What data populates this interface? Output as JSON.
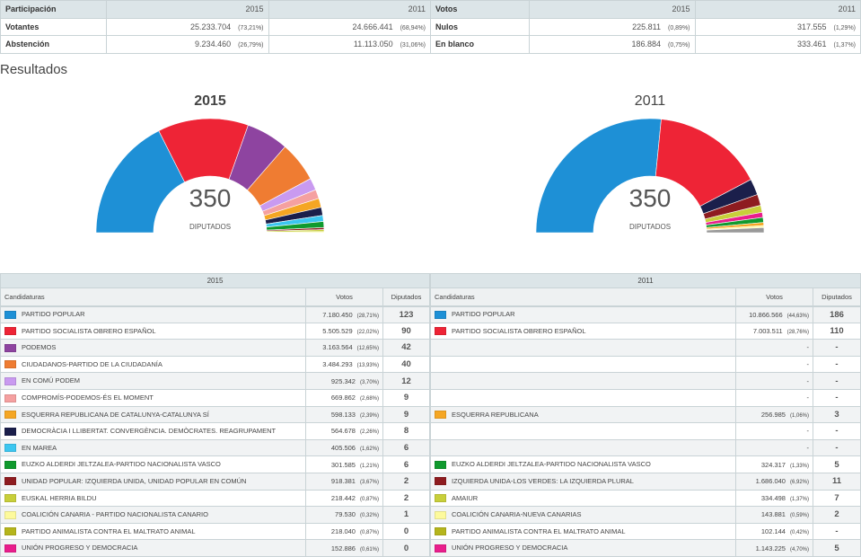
{
  "participacion": {
    "header": [
      "Participación",
      "2015",
      "2011"
    ],
    "rows": [
      {
        "label": "Votantes",
        "v2015": "25.233.704",
        "p2015": "(73,21%)",
        "v2011": "24.666.441",
        "p2011": "(68,94%)"
      },
      {
        "label": "Abstención",
        "v2015": "9.234.460",
        "p2015": "(26,79%)",
        "v2011": "11.113.050",
        "p2011": "(31,06%)"
      }
    ]
  },
  "votos": {
    "header": [
      "Votos",
      "2015",
      "2011"
    ],
    "rows": [
      {
        "label": "Nulos",
        "v2015": "225.811",
        "p2015": "(0,89%)",
        "v2011": "317.555",
        "p2011": "(1,29%)"
      },
      {
        "label": "En blanco",
        "v2015": "186.884",
        "p2015": "(0,75%)",
        "v2011": "333.461",
        "p2011": "(1,37%)"
      }
    ]
  },
  "resultados_title": "Resultados",
  "chart_data": [
    {
      "type": "pie",
      "title": "2015",
      "total": "350",
      "total_label": "DIPUTADOS",
      "segments": [
        {
          "color": "#1e90d6",
          "value": 123
        },
        {
          "color": "#ee2436",
          "value": 90
        },
        {
          "color": "#8e44a0",
          "value": 42
        },
        {
          "color": "#ef7c32",
          "value": 40
        },
        {
          "color": "#c99af0",
          "value": 12
        },
        {
          "color": "#f5a0a0",
          "value": 9
        },
        {
          "color": "#f5a623",
          "value": 9
        },
        {
          "color": "#1b1f4b",
          "value": 8
        },
        {
          "color": "#3cc6f0",
          "value": 6
        },
        {
          "color": "#109a2e",
          "value": 6
        },
        {
          "color": "#8e1c20",
          "value": 2
        },
        {
          "color": "#c8cf3a",
          "value": 2
        },
        {
          "color": "#fdfa9c",
          "value": 1
        }
      ]
    },
    {
      "type": "pie",
      "title": "2011",
      "total": "350",
      "total_label": "DIPUTADOS",
      "segments": [
        {
          "color": "#1e90d6",
          "value": 186
        },
        {
          "color": "#ee2436",
          "value": 110
        },
        {
          "color": "#1b1f4b",
          "value": 16
        },
        {
          "color": "#8e1c20",
          "value": 11
        },
        {
          "color": "#c8cf3a",
          "value": 7
        },
        {
          "color": "#e91e8c",
          "value": 5
        },
        {
          "color": "#109a2e",
          "value": 5
        },
        {
          "color": "#f5a623",
          "value": 3
        },
        {
          "color": "#fdfa9c",
          "value": 2
        },
        {
          "color": "#999999",
          "value": 5
        }
      ]
    }
  ],
  "tabla": {
    "cols": [
      "Candidaturas",
      "Votos",
      "Diputados"
    ],
    "y2015": {
      "year": "2015",
      "rows": [
        {
          "color": "#1e90d6",
          "name": "PARTIDO POPULAR",
          "votes": "7.180.450",
          "pct": "(28,71%)",
          "seats": "123"
        },
        {
          "color": "#ee2436",
          "name": "PARTIDO SOCIALISTA OBRERO ESPAÑOL",
          "votes": "5.505.529",
          "pct": "(22,02%)",
          "seats": "90"
        },
        {
          "color": "#8e44a0",
          "name": "PODEMOS",
          "votes": "3.163.564",
          "pct": "(12,65%)",
          "seats": "42"
        },
        {
          "color": "#ef7c32",
          "name": "CIUDADANOS-PARTIDO DE LA CIUDADANÍA",
          "votes": "3.484.293",
          "pct": "(13,93%)",
          "seats": "40"
        },
        {
          "color": "#c99af0",
          "name": "EN COMÚ PODEM",
          "votes": "925.342",
          "pct": "(3,70%)",
          "seats": "12"
        },
        {
          "color": "#f5a0a0",
          "name": "COMPROMÍS-PODEMOS-ÉS EL MOMENT",
          "votes": "669.862",
          "pct": "(2,68%)",
          "seats": "9"
        },
        {
          "color": "#f5a623",
          "name": "ESQUERRA REPUBLICANA DE CATALUNYA-CATALUNYA SÍ",
          "votes": "598.133",
          "pct": "(2,39%)",
          "seats": "9"
        },
        {
          "color": "#1b1f4b",
          "name": "DEMOCRÀCIA I LLIBERTAT. CONVERGÈNCIA. DEMÒCRATES. REAGRUPAMENT",
          "votes": "564.678",
          "pct": "(2,26%)",
          "seats": "8"
        },
        {
          "color": "#3cc6f0",
          "name": "EN MAREA",
          "votes": "405.506",
          "pct": "(1,62%)",
          "seats": "6"
        },
        {
          "color": "#109a2e",
          "name": "EUZKO ALDERDI JELTZALEA-PARTIDO NACIONALISTA VASCO",
          "votes": "301.585",
          "pct": "(1,21%)",
          "seats": "6"
        },
        {
          "color": "#8e1c20",
          "name": "UNIDAD POPULAR: IZQUIERDA UNIDA, UNIDAD POPULAR EN COMÚN",
          "votes": "918.381",
          "pct": "(3,67%)",
          "seats": "2"
        },
        {
          "color": "#c8cf3a",
          "name": "EUSKAL HERRIA BILDU",
          "votes": "218.442",
          "pct": "(0,87%)",
          "seats": "2"
        },
        {
          "color": "#fdfa9c",
          "name": "COALICIÓN CANARIA - PARTIDO NACIONALISTA CANARIO",
          "votes": "79.530",
          "pct": "(0,32%)",
          "seats": "1"
        },
        {
          "color": "#b5b51c",
          "name": "PARTIDO ANIMALISTA CONTRA EL MALTRATO ANIMAL",
          "votes": "218.040",
          "pct": "(0,87%)",
          "seats": "0"
        },
        {
          "color": "#e91e8c",
          "name": "UNIÓN PROGRESO Y DEMOCRACIA",
          "votes": "152.886",
          "pct": "(0,61%)",
          "seats": "0"
        }
      ]
    },
    "y2011": {
      "year": "2011",
      "rows": [
        {
          "color": "#1e90d6",
          "name": "PARTIDO POPULAR",
          "votes": "10.866.566",
          "pct": "(44,63%)",
          "seats": "186"
        },
        {
          "color": "#ee2436",
          "name": "PARTIDO SOCIALISTA OBRERO ESPAÑOL",
          "votes": "7.003.511",
          "pct": "(28,76%)",
          "seats": "110"
        },
        {
          "name": "",
          "votes": "-",
          "pct": "",
          "seats": "-"
        },
        {
          "name": "",
          "votes": "-",
          "pct": "",
          "seats": "-"
        },
        {
          "name": "",
          "votes": "-",
          "pct": "",
          "seats": "-"
        },
        {
          "name": "",
          "votes": "-",
          "pct": "",
          "seats": "-"
        },
        {
          "color": "#f5a623",
          "name": "ESQUERRA REPUBLICANA",
          "votes": "256.985",
          "pct": "(1,06%)",
          "seats": "3"
        },
        {
          "name": "",
          "votes": "-",
          "pct": "",
          "seats": "-"
        },
        {
          "name": "",
          "votes": "-",
          "pct": "",
          "seats": "-"
        },
        {
          "color": "#109a2e",
          "name": "EUZKO ALDERDI JELTZALEA-PARTIDO NACIONALISTA VASCO",
          "votes": "324.317",
          "pct": "(1,33%)",
          "seats": "5"
        },
        {
          "color": "#8e1c20",
          "name": "IZQUIERDA UNIDA-LOS VERDES: LA IZQUIERDA PLURAL",
          "votes": "1.686.040",
          "pct": "(6,92%)",
          "seats": "11"
        },
        {
          "color": "#c8cf3a",
          "name": "AMAIUR",
          "votes": "334.498",
          "pct": "(1,37%)",
          "seats": "7"
        },
        {
          "color": "#fdfa9c",
          "name": "COALICIÓN CANARIA-NUEVA CANARIAS",
          "votes": "143.881",
          "pct": "(0,59%)",
          "seats": "2"
        },
        {
          "color": "#b5b51c",
          "name": "PARTIDO ANIMALISTA CONTRA EL MALTRATO ANIMAL",
          "votes": "102.144",
          "pct": "(0,42%)",
          "seats": "-"
        },
        {
          "color": "#e91e8c",
          "name": "UNIÓN PROGRESO Y DEMOCRACIA",
          "votes": "1.143.225",
          "pct": "(4,70%)",
          "seats": "5"
        }
      ]
    }
  }
}
